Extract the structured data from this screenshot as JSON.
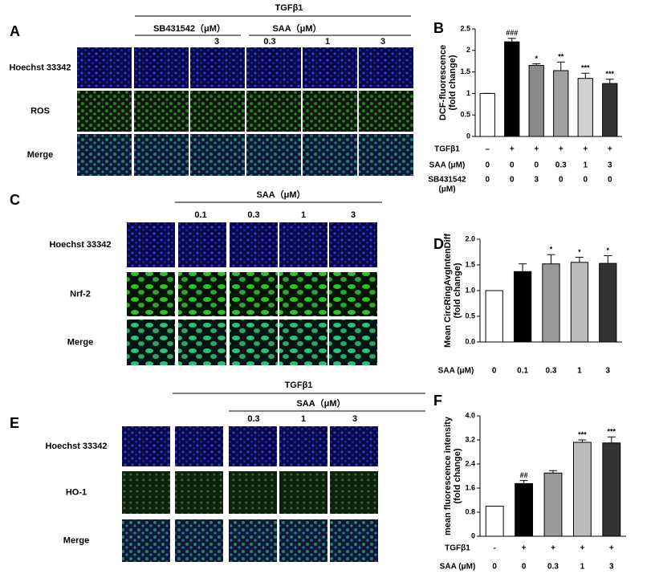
{
  "panels": [
    {
      "label": "A",
      "top": "TGFβ1",
      "groups": [
        "SB431542（μM）",
        "SAA（μM）"
      ],
      "columns": [
        "3",
        "0.3",
        "1",
        "3"
      ],
      "rows": [
        "Hoechst 33342",
        "ROS",
        "Merge"
      ]
    },
    {
      "label": "C",
      "groups": [
        "SAA（μM）"
      ],
      "columns": [
        "0.1",
        "0.3",
        "1",
        "3"
      ],
      "rows": [
        "Hoechst 33342",
        "Nrf-2",
        "Merge"
      ]
    },
    {
      "label": "E",
      "top": "TGFβ1",
      "groups": [
        "SAA（μM）"
      ],
      "columns": [
        "0.3",
        "1",
        "3"
      ],
      "rows": [
        "Hoechst 33342",
        "HO-1",
        "Merge"
      ]
    }
  ],
  "chart_data": [
    {
      "type": "bar",
      "label": "B",
      "ylabel": [
        "DCF-fluorescence",
        "(fold change)"
      ],
      "values": [
        1,
        2.2,
        1.65,
        1.53,
        1.35,
        1.23
      ],
      "errors": [
        0,
        0.08,
        0.04,
        0.2,
        0.12,
        0.1
      ],
      "colors": [
        "#ffffff",
        "#000000",
        "#8a8a8a",
        "#a0a0a0",
        "#d0d0d0",
        "#333333"
      ],
      "annotations": [
        null,
        "###",
        "*",
        "**",
        "***",
        "***"
      ],
      "ylim": [
        0,
        2.5
      ],
      "yticks": [
        0,
        0.5,
        1,
        1.5,
        2,
        2.5
      ],
      "conditions": [
        {
          "name": [
            "TGFβ1"
          ],
          "values": [
            "–",
            "+",
            "+",
            "+",
            "+",
            "+"
          ]
        },
        {
          "name": [
            "SAA (μM)"
          ],
          "values": [
            "0",
            "0",
            "0",
            "0.3",
            "1",
            "3"
          ]
        },
        {
          "name": [
            "SB431542",
            "(μM)"
          ],
          "values": [
            "0",
            "0",
            "3",
            "0",
            "0",
            "0"
          ]
        }
      ]
    },
    {
      "type": "bar",
      "label": "D",
      "ylabel": [
        "Mean CircRingAvgIntenDiff",
        "(fold change)"
      ],
      "values": [
        1,
        1.37,
        1.52,
        1.55,
        1.53
      ],
      "errors": [
        0,
        0.15,
        0.18,
        0.1,
        0.15
      ],
      "colors": [
        "#ffffff",
        "#000000",
        "#9a9a9a",
        "#bcbcbc",
        "#333333"
      ],
      "annotations": [
        null,
        null,
        "*",
        "*",
        "*"
      ],
      "ylim": [
        0,
        2
      ],
      "yticks": [
        {
          "value": 0,
          "label": "0.0"
        },
        0.5,
        {
          "value": 1,
          "label": "1.0"
        },
        1.5,
        {
          "value": 2,
          "label": "2.0"
        }
      ],
      "conditions": [
        {
          "name": [
            "SAA (μM)"
          ],
          "values": [
            "0",
            "0.1",
            "0.3",
            "1",
            "3"
          ]
        }
      ]
    },
    {
      "type": "bar",
      "label": "F",
      "ylabel": [
        "mean fluorescence intensity",
        "(fold change)"
      ],
      "values": [
        1,
        1.75,
        2.1,
        3.12,
        3.1
      ],
      "errors": [
        0,
        0.1,
        0.08,
        0.08,
        0.2
      ],
      "colors": [
        "#ffffff",
        "#000000",
        "#9a9a9a",
        "#bcbcbc",
        "#333333"
      ],
      "annotations": [
        null,
        "##",
        null,
        "***",
        "***"
      ],
      "ylim": [
        0,
        4
      ],
      "yticks": [
        0,
        0.8,
        1.6,
        2.4,
        3.2,
        {
          "value": 4,
          "label": "4.0"
        }
      ],
      "conditions": [
        {
          "name": [
            "TGFβ1"
          ],
          "values": [
            "-",
            "+",
            "+",
            "+",
            "+"
          ]
        },
        {
          "name": [
            "SAA (μM)"
          ],
          "values": [
            "0",
            "0",
            "0.3",
            "1",
            "3"
          ]
        }
      ]
    }
  ]
}
